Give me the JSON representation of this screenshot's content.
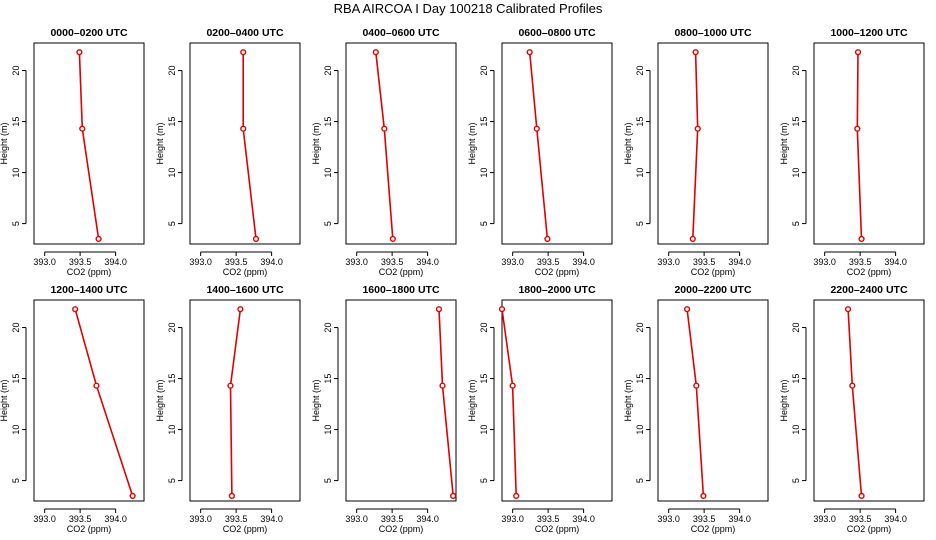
{
  "figure": {
    "title": "RBA AIRCOA I  Day 100218  Calibrated Profiles",
    "line_color": "#e00000",
    "axis_color": "#000000"
  },
  "chart_data": [
    {
      "type": "line",
      "title": "0000–0200 UTC",
      "xlabel": "CO2 (ppm)",
      "ylabel": "Height (m)",
      "xlim": [
        392.85,
        394.4
      ],
      "ylim": [
        3.0,
        22.7
      ],
      "xticks": [
        "393.0",
        "393.5",
        "394.0"
      ],
      "yticks": [
        "5",
        "10",
        "15",
        "20"
      ],
      "series": [
        {
          "x": [
            393.49,
            393.53,
            393.76
          ],
          "y": [
            21.8,
            14.3,
            3.5
          ]
        }
      ]
    },
    {
      "type": "line",
      "title": "0200–0400 UTC",
      "xlabel": "CO2 (ppm)",
      "ylabel": "Height (m)",
      "xlim": [
        392.85,
        394.4
      ],
      "ylim": [
        3.0,
        22.7
      ],
      "xticks": [
        "393.0",
        "393.5",
        "394.0"
      ],
      "yticks": [
        "5",
        "10",
        "15",
        "20"
      ],
      "series": [
        {
          "x": [
            393.6,
            393.6,
            393.78
          ],
          "y": [
            21.8,
            14.3,
            3.5
          ]
        }
      ]
    },
    {
      "type": "line",
      "title": "0400–0600 UTC",
      "xlabel": "CO2 (ppm)",
      "ylabel": "Height (m)",
      "xlim": [
        392.85,
        394.4
      ],
      "ylim": [
        3.0,
        22.7
      ],
      "xticks": [
        "393.0",
        "393.5",
        "394.0"
      ],
      "yticks": [
        "5",
        "10",
        "15",
        "20"
      ],
      "series": [
        {
          "x": [
            393.27,
            393.39,
            393.51
          ],
          "y": [
            21.8,
            14.3,
            3.5
          ]
        }
      ]
    },
    {
      "type": "line",
      "title": "0600–0800 UTC",
      "xlabel": "CO2 (ppm)",
      "ylabel": "Height (m)",
      "xlim": [
        392.85,
        394.4
      ],
      "ylim": [
        3.0,
        22.7
      ],
      "xticks": [
        "393.0",
        "393.5",
        "394.0"
      ],
      "yticks": [
        "5",
        "10",
        "15",
        "20"
      ],
      "series": [
        {
          "x": [
            393.24,
            393.34,
            393.49
          ],
          "y": [
            21.8,
            14.3,
            3.5
          ]
        }
      ]
    },
    {
      "type": "line",
      "title": "0800–1000 UTC",
      "xlabel": "CO2 (ppm)",
      "ylabel": "Height (m)",
      "xlim": [
        392.85,
        394.4
      ],
      "ylim": [
        3.0,
        22.7
      ],
      "xticks": [
        "393.0",
        "393.5",
        "394.0"
      ],
      "yticks": [
        "5",
        "10",
        "15",
        "20"
      ],
      "series": [
        {
          "x": [
            393.38,
            393.41,
            393.34
          ],
          "y": [
            21.8,
            14.3,
            3.5
          ]
        }
      ]
    },
    {
      "type": "line",
      "title": "1000–1200 UTC",
      "xlabel": "CO2 (ppm)",
      "ylabel": "Height (m)",
      "xlim": [
        392.85,
        394.4
      ],
      "ylim": [
        3.0,
        22.7
      ],
      "xticks": [
        "393.0",
        "393.5",
        "394.0"
      ],
      "yticks": [
        "5",
        "10",
        "15",
        "20"
      ],
      "series": [
        {
          "x": [
            393.47,
            393.46,
            393.52
          ],
          "y": [
            21.8,
            14.3,
            3.5
          ]
        }
      ]
    },
    {
      "type": "line",
      "title": "1200–1400 UTC",
      "xlabel": "CO2 (ppm)",
      "ylabel": "Height (m)",
      "xlim": [
        392.85,
        394.4
      ],
      "ylim": [
        3.0,
        22.7
      ],
      "xticks": [
        "393.0",
        "393.5",
        "394.0"
      ],
      "yticks": [
        "5",
        "10",
        "15",
        "20"
      ],
      "series": [
        {
          "x": [
            393.43,
            393.73,
            394.24
          ],
          "y": [
            21.8,
            14.3,
            3.5
          ]
        }
      ]
    },
    {
      "type": "line",
      "title": "1400–1600 UTC",
      "xlabel": "CO2 (ppm)",
      "ylabel": "Height (m)",
      "xlim": [
        392.85,
        394.4
      ],
      "ylim": [
        3.0,
        22.7
      ],
      "xticks": [
        "393.0",
        "393.5",
        "394.0"
      ],
      "yticks": [
        "5",
        "10",
        "15",
        "20"
      ],
      "series": [
        {
          "x": [
            393.56,
            393.42,
            393.44
          ],
          "y": [
            21.8,
            14.3,
            3.5
          ]
        }
      ]
    },
    {
      "type": "line",
      "title": "1600–1800 UTC",
      "xlabel": "CO2 (ppm)",
      "ylabel": "Height (m)",
      "xlim": [
        392.85,
        394.4
      ],
      "ylim": [
        3.0,
        22.7
      ],
      "xticks": [
        "393.0",
        "393.5",
        "394.0"
      ],
      "yticks": [
        "5",
        "10",
        "15",
        "20"
      ],
      "series": [
        {
          "x": [
            394.16,
            394.21,
            394.36
          ],
          "y": [
            21.8,
            14.3,
            3.5
          ]
        }
      ]
    },
    {
      "type": "line",
      "title": "1800–2000 UTC",
      "xlabel": "CO2 (ppm)",
      "ylabel": "Height (m)",
      "xlim": [
        392.85,
        394.4
      ],
      "ylim": [
        3.0,
        22.7
      ],
      "xticks": [
        "393.0",
        "393.5",
        "394.0"
      ],
      "yticks": [
        "5",
        "10",
        "15",
        "20"
      ],
      "series": [
        {
          "x": [
            392.85,
            393.0,
            393.05
          ],
          "y": [
            21.8,
            14.3,
            3.5
          ]
        }
      ]
    },
    {
      "type": "line",
      "title": "2000–2200 UTC",
      "xlabel": "CO2 (ppm)",
      "ylabel": "Height (m)",
      "xlim": [
        392.85,
        394.4
      ],
      "ylim": [
        3.0,
        22.7
      ],
      "xticks": [
        "393.0",
        "393.5",
        "394.0"
      ],
      "yticks": [
        "5",
        "10",
        "15",
        "20"
      ],
      "series": [
        {
          "x": [
            393.26,
            393.39,
            393.49
          ],
          "y": [
            21.8,
            14.3,
            3.5
          ]
        }
      ]
    },
    {
      "type": "line",
      "title": "2200–2400 UTC",
      "xlabel": "CO2 (ppm)",
      "ylabel": "Height (m)",
      "xlim": [
        392.85,
        394.4
      ],
      "ylim": [
        3.0,
        22.7
      ],
      "xticks": [
        "393.0",
        "393.5",
        "394.0"
      ],
      "yticks": [
        "5",
        "10",
        "15",
        "20"
      ],
      "series": [
        {
          "x": [
            393.33,
            393.39,
            393.52
          ],
          "y": [
            21.8,
            14.3,
            3.5
          ]
        }
      ]
    }
  ]
}
